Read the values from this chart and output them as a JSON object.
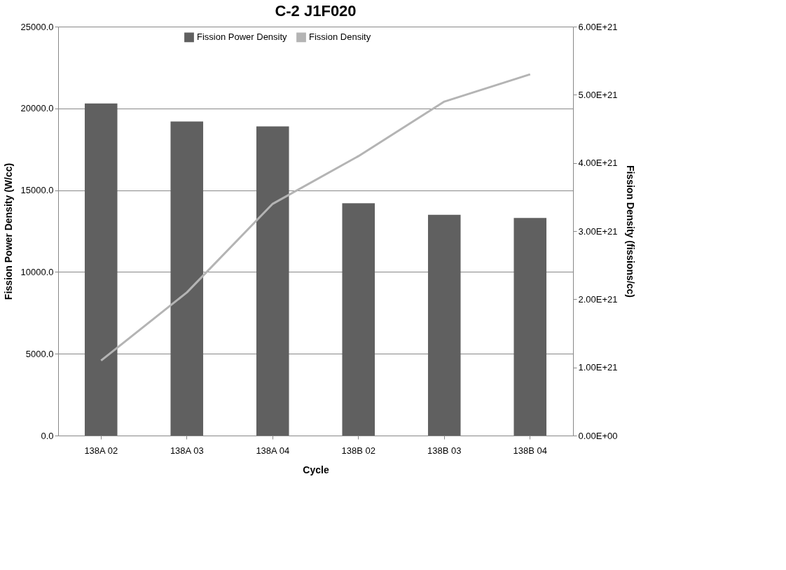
{
  "chart_data": {
    "type": "bar",
    "title": "C-2 J1F020",
    "xlabel": "Cycle",
    "ylabel": "Fission Power Density (W/cc)",
    "y2label": "Fission Density (fissions/cc)",
    "categories": [
      "138A 02",
      "138A 03",
      "138A 04",
      "138B 02",
      "138B 03",
      "138B 04"
    ],
    "series": [
      {
        "name": "Fission Power Density",
        "color": "#606060",
        "values": [
          20300,
          19200,
          18900,
          14200,
          13500,
          13300
        ]
      },
      {
        "name": "Fission Density",
        "type": "line",
        "axis": "y2",
        "color": "#b4b4b4",
        "values": [
          1.1e+21,
          2.1e+21,
          3.4e+21,
          4.1e+21,
          4.9e+21,
          5.3e+21
        ]
      }
    ],
    "ylim": [
      0,
      25000
    ],
    "yticks": [
      {
        "value": 0,
        "label": "0.0"
      },
      {
        "value": 5000,
        "label": "5000.0"
      },
      {
        "value": 10000,
        "label": "10000.0"
      },
      {
        "value": 15000,
        "label": "15000.0"
      },
      {
        "value": 20000,
        "label": "20000.0"
      },
      {
        "value": 25000,
        "label": "25000.0"
      }
    ],
    "y2lim": [
      0,
      6e+21
    ],
    "y2ticks": [
      {
        "value": 0,
        "label": "0.00E+00"
      },
      {
        "value": 1e+21,
        "label": "1.00E+21"
      },
      {
        "value": 2e+21,
        "label": "2.00E+21"
      },
      {
        "value": 3e+21,
        "label": "3.00E+21"
      },
      {
        "value": 4e+21,
        "label": "4.00E+21"
      },
      {
        "value": 5e+21,
        "label": "5.00E+21"
      },
      {
        "value": 6e+21,
        "label": "6.00E+21"
      }
    ],
    "grid": "y",
    "legend": "top"
  }
}
